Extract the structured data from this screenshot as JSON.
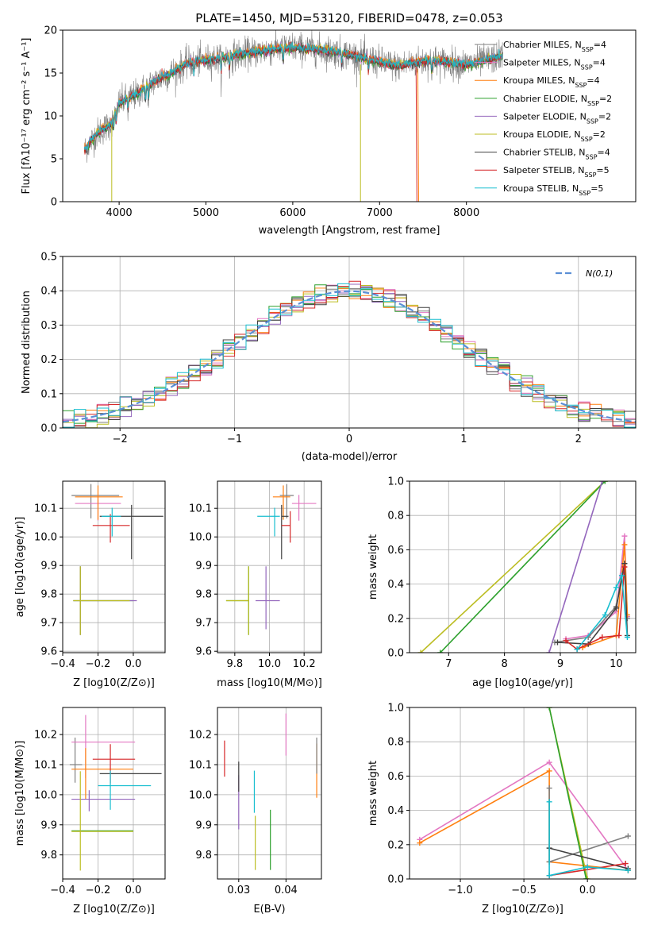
{
  "figure": {
    "title": "PLATE=1450, MJD=53120, FIBERID=0478, z=0.053"
  },
  "colors": {
    "Chabrier MILES": "#7f7f7f",
    "Salpeter MILES": "#e377c2",
    "Kroupa MILES": "#ff7f0e",
    "Chabrier ELODIE": "#2ca02c",
    "Salpeter ELODIE": "#9467bd",
    "Kroupa ELODIE": "#bcbd22",
    "Chabrier STELIB": "#404040",
    "Salpeter STELIB": "#d62728",
    "Kroupa STELIB": "#17becf",
    "normal": "#5b8fd6"
  },
  "chart_data": [
    {
      "id": "spectrum",
      "type": "line",
      "title": "PLATE=1450, MJD=53120, FIBERID=0478, z=0.053",
      "xlabel": "wavelength [Angstrom, rest frame]",
      "ylabel": "Flux [fλ10⁻¹⁷ erg cm⁻² s⁻¹ A⁻¹]",
      "xlim": [
        3350,
        9950
      ],
      "ylim": [
        0,
        20
      ],
      "xticks": [
        4000,
        5000,
        6000,
        7000,
        8000
      ],
      "yticks": [
        0,
        5,
        10,
        15,
        20
      ],
      "grid": false,
      "legend_position": "top-right",
      "legend": [
        "Chabrier MILES, N_SSP=4",
        "Salpeter MILES, N_SSP=4",
        "Kroupa MILES, N_SSP=4",
        "Chabrier ELODIE, N_SSP=2",
        "Salpeter ELODIE, N_SSP=2",
        "Kroupa ELODIE, N_SSP=2",
        "Chabrier STELIB, N_SSP=4",
        "Salpeter STELIB, N_SSP=5",
        "Kroupa STELIB, N_SSP=5"
      ],
      "continuum_points": [
        [
          3600,
          6
        ],
        [
          3750,
          8
        ],
        [
          3900,
          9
        ],
        [
          4000,
          11.5
        ],
        [
          4200,
          12.5
        ],
        [
          4400,
          14
        ],
        [
          4600,
          15
        ],
        [
          4800,
          16.2
        ],
        [
          5000,
          16.5
        ],
        [
          5200,
          16.8
        ],
        [
          5400,
          17.2
        ],
        [
          5600,
          17.5
        ],
        [
          5800,
          17.8
        ],
        [
          6000,
          18
        ],
        [
          6200,
          17.8
        ],
        [
          6400,
          17.6
        ],
        [
          6600,
          17.3
        ],
        [
          6800,
          16.8
        ],
        [
          7000,
          16.3
        ],
        [
          7200,
          15.8
        ],
        [
          7400,
          16.2
        ],
        [
          7600,
          16.5
        ],
        [
          7800,
          16.2
        ],
        [
          8000,
          16
        ],
        [
          8200,
          16.4
        ],
        [
          8400,
          17
        ]
      ]
    },
    {
      "id": "residuals",
      "type": "bar",
      "xlabel": "(data-model)/error",
      "ylabel": "Normed distribution",
      "xlim": [
        -2.5,
        2.5
      ],
      "ylim": [
        0,
        0.5
      ],
      "xticks": [
        -2,
        -1,
        0,
        1,
        2
      ],
      "yticks": [
        0.0,
        0.1,
        0.2,
        0.3,
        0.4,
        0.5
      ],
      "grid": true,
      "legend_position": "top-right",
      "legend": [
        "N(0,1)"
      ],
      "bin_width": 0.1,
      "bins_start": -2.5
    },
    {
      "id": "age_Z",
      "type": "scatter",
      "xlabel": "Z [log10(Z/Z⊙)]",
      "ylabel": "age  [log10(age/yr)]",
      "xlim": [
        -0.4,
        0.18
      ],
      "ylim": [
        9.595,
        10.195
      ],
      "xticks": [
        -0.4,
        -0.2,
        0.0
      ],
      "yticks": [
        9.6,
        9.7,
        9.8,
        9.9,
        10.0,
        10.1
      ],
      "grid": true,
      "points": [
        {
          "model": "Chabrier MILES",
          "x": -0.24,
          "y": 10.145,
          "xerr": [
            0.11,
            0.16
          ],
          "yerr": [
            0.08,
            0.04
          ]
        },
        {
          "model": "Salpeter MILES",
          "x": -0.2,
          "y": 10.117,
          "xerr": [
            0.13,
            0.13
          ],
          "yerr": [
            0.06,
            0.03
          ]
        },
        {
          "model": "Kroupa MILES",
          "x": -0.2,
          "y": 10.14,
          "xerr": [
            0.13,
            0.14
          ],
          "yerr": [
            0.08,
            0.04
          ]
        },
        {
          "model": "Chabrier ELODIE",
          "x": -0.3,
          "y": 9.777,
          "xerr": [
            0.04,
            0.3
          ],
          "yerr": [
            0.12,
            0.12
          ]
        },
        {
          "model": "Salpeter ELODIE",
          "x": -0.3,
          "y": 9.777,
          "xerr": [
            0.04,
            0.32
          ],
          "yerr": [
            0.12,
            0.12
          ]
        },
        {
          "model": "Kroupa ELODIE",
          "x": -0.3,
          "y": 9.777,
          "xerr": [
            0.04,
            0.28
          ],
          "yerr": [
            0.12,
            0.12
          ]
        },
        {
          "model": "Chabrier STELIB",
          "x": -0.01,
          "y": 10.072,
          "xerr": [
            0.18,
            0.18
          ],
          "yerr": [
            0.15,
            0.04
          ]
        },
        {
          "model": "Salpeter STELIB",
          "x": -0.13,
          "y": 10.04,
          "xerr": [
            0.1,
            0.11
          ],
          "yerr": [
            0.06,
            0.04
          ]
        },
        {
          "model": "Kroupa STELIB",
          "x": -0.12,
          "y": 10.072,
          "xerr": [
            0.06,
            0.05
          ],
          "yerr": [
            0.07,
            0.03
          ]
        }
      ]
    },
    {
      "id": "age_mass",
      "type": "scatter",
      "xlabel": "mass [log10(M/M⊙)]",
      "ylabel": "",
      "xlim": [
        9.7,
        10.3
      ],
      "ylim": [
        9.595,
        10.195
      ],
      "xticks": [
        9.8,
        10.0,
        10.2
      ],
      "yticks": [
        9.6,
        9.7,
        9.8,
        9.9,
        10.0,
        10.1
      ],
      "grid": true,
      "points": [
        {
          "model": "Chabrier MILES",
          "x": 10.1,
          "y": 10.145,
          "xerr": [
            0.04,
            0.04
          ],
          "yerr": [
            0.08,
            0.04
          ]
        },
        {
          "model": "Salpeter MILES",
          "x": 10.17,
          "y": 10.117,
          "xerr": [
            0.04,
            0.1
          ],
          "yerr": [
            0.06,
            0.03
          ]
        },
        {
          "model": "Kroupa MILES",
          "x": 10.08,
          "y": 10.14,
          "xerr": [
            0.06,
            0.04
          ],
          "yerr": [
            0.08,
            0.04
          ]
        },
        {
          "model": "Chabrier ELODIE",
          "x": 9.88,
          "y": 9.777,
          "xerr": [
            0.13,
            0.0
          ],
          "yerr": [
            0.12,
            0.12
          ]
        },
        {
          "model": "Salpeter ELODIE",
          "x": 9.98,
          "y": 9.777,
          "xerr": [
            0.06,
            0.08
          ],
          "yerr": [
            0.1,
            0.12
          ]
        },
        {
          "model": "Kroupa ELODIE",
          "x": 9.88,
          "y": 9.777,
          "xerr": [
            0.13,
            0.0
          ],
          "yerr": [
            0.12,
            0.12
          ]
        },
        {
          "model": "Chabrier STELIB",
          "x": 10.07,
          "y": 10.072,
          "xerr": [
            0.0,
            0.04
          ],
          "yerr": [
            0.15,
            0.04
          ]
        },
        {
          "model": "Salpeter STELIB",
          "x": 10.12,
          "y": 10.04,
          "xerr": [
            0.05,
            0.0
          ],
          "yerr": [
            0.06,
            0.05
          ]
        },
        {
          "model": "Kroupa STELIB",
          "x": 10.03,
          "y": 10.072,
          "xerr": [
            0.1,
            0.03
          ],
          "yerr": [
            0.07,
            0.03
          ]
        }
      ]
    },
    {
      "id": "weight_age",
      "type": "line",
      "xlabel": "age  [log10(age/yr)]",
      "ylabel": "mass weight",
      "xlim": [
        6.3,
        10.35
      ],
      "ylim": [
        0,
        1
      ],
      "xticks": [
        7,
        8,
        9,
        10
      ],
      "yticks": [
        0.0,
        0.2,
        0.4,
        0.6,
        0.8,
        1.0
      ],
      "grid": true,
      "series": [
        {
          "model": "Kroupa ELODIE",
          "points": [
            [
              6.5,
              0.0
            ],
            [
              9.8,
              1.0
            ]
          ]
        },
        {
          "model": "Chabrier ELODIE",
          "points": [
            [
              6.85,
              0.0
            ],
            [
              9.8,
              1.0
            ]
          ]
        },
        {
          "model": "Salpeter ELODIE",
          "points": [
            [
              8.8,
              0.0
            ],
            [
              9.75,
              1.0
            ]
          ]
        },
        {
          "model": "Salpeter MILES",
          "points": [
            [
              9.1,
              0.08
            ],
            [
              9.5,
              0.1
            ],
            [
              10.0,
              0.24
            ],
            [
              10.15,
              0.68
            ],
            [
              10.2,
              0.21
            ]
          ]
        },
        {
          "model": "Chabrier MILES",
          "points": [
            [
              8.9,
              0.06
            ],
            [
              9.5,
              0.09
            ],
            [
              10.0,
              0.27
            ],
            [
              10.15,
              0.52
            ],
            [
              10.2,
              0.2
            ]
          ]
        },
        {
          "model": "Kroupa MILES",
          "points": [
            [
              9.4,
              0.03
            ],
            [
              10.0,
              0.1
            ],
            [
              10.15,
              0.63
            ],
            [
              10.2,
              0.22
            ]
          ]
        },
        {
          "model": "Chabrier STELIB",
          "points": [
            [
              8.95,
              0.06
            ],
            [
              9.5,
              0.05
            ],
            [
              10.0,
              0.26
            ],
            [
              10.15,
              0.52
            ],
            [
              10.2,
              0.1
            ]
          ]
        },
        {
          "model": "Salpeter STELIB",
          "points": [
            [
              9.1,
              0.07
            ],
            [
              9.3,
              0.02
            ],
            [
              9.75,
              0.09
            ],
            [
              10.05,
              0.1
            ],
            [
              10.15,
              0.5
            ]
          ]
        },
        {
          "model": "Kroupa STELIB",
          "points": [
            [
              9.3,
              0.02
            ],
            [
              9.8,
              0.22
            ],
            [
              10.0,
              0.38
            ],
            [
              10.1,
              0.45
            ],
            [
              10.2,
              0.09
            ]
          ]
        }
      ]
    },
    {
      "id": "mass_Z",
      "type": "scatter",
      "xlabel": "Z [log10(Z/Z⊙)]",
      "ylabel": "mass [log10(M/M⊙)]",
      "xlim": [
        -0.4,
        0.18
      ],
      "ylim": [
        9.72,
        10.29
      ],
      "xticks": [
        -0.4,
        -0.2,
        0.0
      ],
      "yticks": [
        9.8,
        9.9,
        10.0,
        10.1,
        10.2
      ],
      "grid": true,
      "points": [
        {
          "model": "Chabrier MILES",
          "x": -0.33,
          "y": 10.1,
          "xerr": [
            0.03,
            0.04
          ],
          "yerr": [
            0.06,
            0.09
          ]
        },
        {
          "model": "Salpeter MILES",
          "x": -0.27,
          "y": 10.175,
          "xerr": [
            0.08,
            0.28
          ],
          "yerr": [
            0.12,
            0.09
          ]
        },
        {
          "model": "Kroupa MILES",
          "x": -0.27,
          "y": 10.085,
          "xerr": [
            0.08,
            0.27
          ],
          "yerr": [
            0.1,
            0.07
          ]
        },
        {
          "model": "Chabrier ELODIE",
          "x": -0.3,
          "y": 9.88,
          "xerr": [
            0.05,
            0.3
          ],
          "yerr": [
            0.0,
            0.0
          ]
        },
        {
          "model": "Salpeter ELODIE",
          "x": -0.25,
          "y": 9.985,
          "xerr": [
            0.1,
            0.26
          ],
          "yerr": [
            0.04,
            0.03
          ]
        },
        {
          "model": "Kroupa ELODIE",
          "x": -0.3,
          "y": 9.878,
          "xerr": [
            0.05,
            0.3
          ],
          "yerr": [
            0.13,
            0.2
          ]
        },
        {
          "model": "Chabrier STELIB",
          "x": -0.01,
          "y": 10.07,
          "xerr": [
            0.18,
            0.17
          ],
          "yerr": [
            0.0,
            0.0
          ]
        },
        {
          "model": "Salpeter STELIB",
          "x": -0.13,
          "y": 10.118,
          "xerr": [
            0.1,
            0.14
          ],
          "yerr": [
            0.08,
            0.05
          ]
        },
        {
          "model": "Kroupa STELIB",
          "x": -0.13,
          "y": 10.03,
          "xerr": [
            0.07,
            0.23
          ],
          "yerr": [
            0.08,
            0.05
          ]
        }
      ]
    },
    {
      "id": "mass_ebv",
      "type": "scatter",
      "xlabel": "E(B-V)",
      "ylabel": "",
      "xlim": [
        0.0255,
        0.0475
      ],
      "ylim": [
        9.72,
        10.29
      ],
      "xticks": [
        0.03,
        0.04
      ],
      "yticks": [
        9.8,
        9.9,
        10.0,
        10.1,
        10.2
      ],
      "grid": true,
      "points": [
        {
          "model": "Salpeter STELIB",
          "x": 0.027,
          "y": 10.12,
          "xerr": [
            0.0,
            0.0
          ],
          "yerr": [
            0.06,
            0.06
          ]
        },
        {
          "model": "Salpeter ELODIE",
          "x": 0.03,
          "y": 9.985,
          "xerr": [
            0.0,
            0.0
          ],
          "yerr": [
            0.1,
            0.08
          ]
        },
        {
          "model": "Chabrier STELIB",
          "x": 0.03,
          "y": 10.06,
          "xerr": [
            0.0,
            0.0
          ],
          "yerr": [
            0.05,
            0.05
          ]
        },
        {
          "model": "Kroupa STELIB",
          "x": 0.0333,
          "y": 10.01,
          "xerr": [
            0.0,
            0.0
          ],
          "yerr": [
            0.07,
            0.07
          ]
        },
        {
          "model": "Kroupa ELODIE",
          "x": 0.0335,
          "y": 9.84,
          "xerr": [
            0.0,
            0.0
          ],
          "yerr": [
            0.09,
            0.09
          ]
        },
        {
          "model": "Chabrier ELODIE",
          "x": 0.0367,
          "y": 9.85,
          "xerr": [
            0.0,
            0.0
          ],
          "yerr": [
            0.1,
            0.1
          ]
        },
        {
          "model": "Salpeter MILES",
          "x": 0.04,
          "y": 10.2,
          "xerr": [
            0.0,
            0.0
          ],
          "yerr": [
            0.07,
            0.07
          ]
        },
        {
          "model": "Kroupa MILES",
          "x": 0.0465,
          "y": 10.08,
          "xerr": [
            0.0,
            0.0
          ],
          "yerr": [
            0.09,
            0.09
          ]
        },
        {
          "model": "Chabrier MILES",
          "x": 0.0465,
          "y": 10.13,
          "xerr": [
            0.0,
            0.0
          ],
          "yerr": [
            0.06,
            0.06
          ]
        }
      ]
    },
    {
      "id": "weight_Z",
      "type": "line",
      "xlabel": "Z [log10(Z/Z⊙)]",
      "ylabel": "mass weight",
      "xlim": [
        -1.4,
        0.38
      ],
      "ylim": [
        0,
        1
      ],
      "xticks": [
        -1.0,
        -0.5,
        0.0
      ],
      "yticks": [
        0.0,
        0.2,
        0.4,
        0.6,
        0.8,
        1.0
      ],
      "grid": true,
      "series": [
        {
          "model": "Salpeter MILES",
          "points": [
            [
              -1.32,
              0.23
            ],
            [
              -0.3,
              0.68
            ],
            [
              0.32,
              0.05
            ]
          ]
        },
        {
          "model": "Kroupa MILES",
          "points": [
            [
              -1.32,
              0.21
            ],
            [
              -0.3,
              0.63
            ],
            [
              -0.3,
              0.1
            ],
            [
              0.32,
              0.05
            ]
          ]
        },
        {
          "model": "Chabrier MILES",
          "points": [
            [
              -0.3,
              0.53
            ],
            [
              -0.3,
              0.1
            ],
            [
              0.32,
              0.25
            ]
          ]
        },
        {
          "model": "Kroupa ELODIE",
          "points": [
            [
              -0.3,
              1.0
            ],
            [
              0.0,
              0.0
            ]
          ]
        },
        {
          "model": "Chabrier ELODIE",
          "points": [
            [
              -0.3,
              1.0
            ],
            [
              -0.01,
              0.0
            ]
          ]
        },
        {
          "model": "Chabrier STELIB",
          "points": [
            [
              -0.3,
              0.18
            ],
            [
              0.32,
              0.06
            ]
          ]
        },
        {
          "model": "Salpeter STELIB",
          "points": [
            [
              -0.3,
              0.02
            ],
            [
              0.3,
              0.09
            ]
          ]
        },
        {
          "model": "Kroupa STELIB",
          "points": [
            [
              -0.3,
              0.45
            ],
            [
              -0.3,
              0.02
            ],
            [
              0.0,
              0.07
            ],
            [
              0.32,
              0.05
            ]
          ]
        }
      ]
    }
  ]
}
